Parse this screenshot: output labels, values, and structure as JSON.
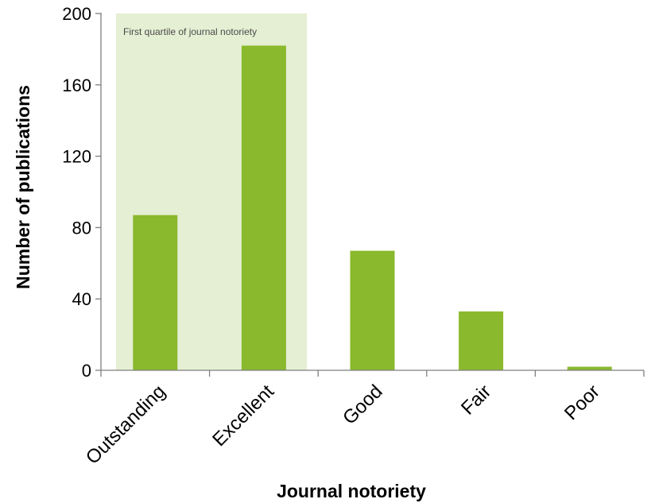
{
  "chart_data": {
    "type": "bar",
    "categories": [
      "Outstanding",
      "Excellent",
      "Good",
      "Fair",
      "Poor"
    ],
    "values": [
      87,
      182,
      67,
      33,
      2
    ],
    "xlabel": "Journal notoriety",
    "ylabel": "Number of publications",
    "ylim": [
      0,
      200
    ],
    "yticks": [
      0,
      40,
      80,
      120,
      160,
      200
    ],
    "grid": false,
    "bar_color": "#8ab92d",
    "highlight": {
      "label": "First quartile of journal notoriety",
      "categories": [
        "Outstanding",
        "Excellent"
      ],
      "color": "#e5efd3"
    }
  }
}
